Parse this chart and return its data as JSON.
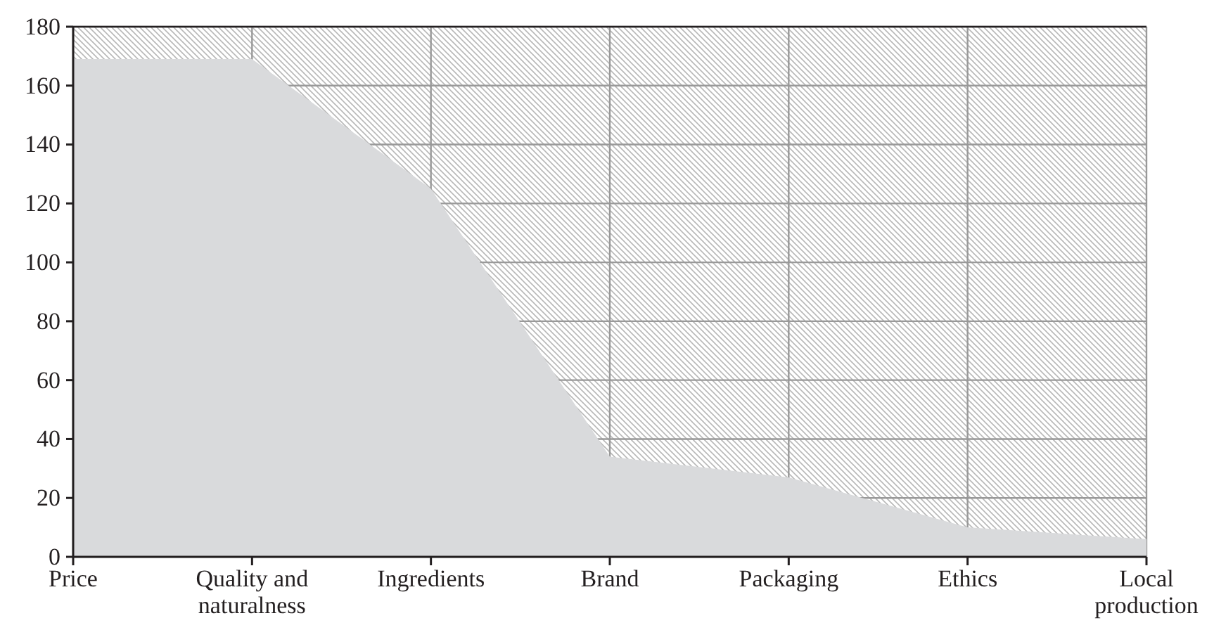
{
  "chart_data": {
    "type": "area",
    "categories": [
      "Price",
      "Quality and naturalness",
      "Ingredients",
      "Brand",
      "Packaging",
      "Ethics",
      "Local production"
    ],
    "values": [
      169,
      169,
      125,
      34,
      27,
      10,
      6
    ],
    "color": "#d9dadc",
    "ylim": [
      0,
      180
    ],
    "yticks": [
      0,
      20,
      40,
      60,
      80,
      100,
      120,
      140,
      160,
      180
    ],
    "grid": true
  }
}
